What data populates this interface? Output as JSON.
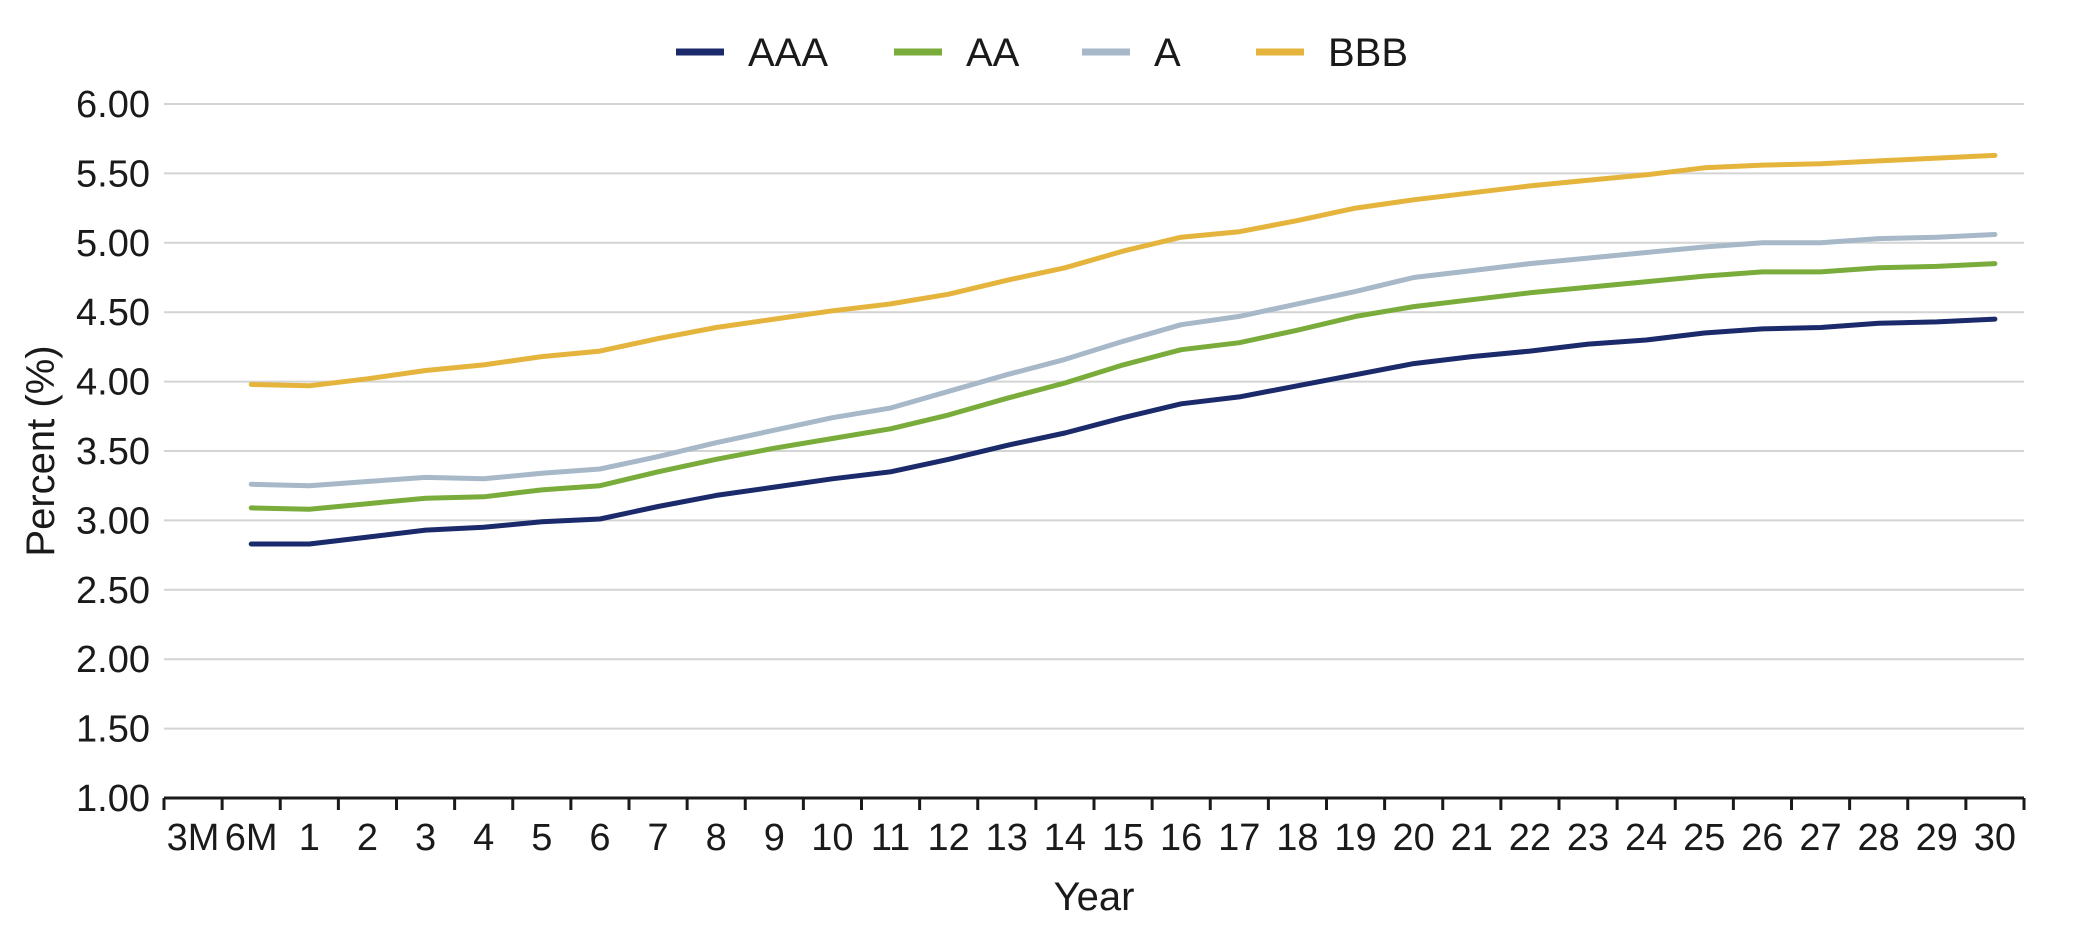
{
  "chart_data": {
    "type": "line",
    "title": "",
    "xlabel": "Year",
    "ylabel": "Percent (%)",
    "categories": [
      "3M",
      "6M",
      "1",
      "2",
      "3",
      "4",
      "5",
      "6",
      "7",
      "8",
      "9",
      "10",
      "11",
      "12",
      "13",
      "14",
      "15",
      "16",
      "17",
      "18",
      "19",
      "20",
      "21",
      "22",
      "23",
      "24",
      "25",
      "26",
      "27",
      "28",
      "29",
      "30"
    ],
    "y_ticks": [
      "1.00",
      "1.50",
      "2.00",
      "2.50",
      "3.00",
      "3.50",
      "4.00",
      "4.50",
      "5.00",
      "5.50",
      "6.00"
    ],
    "ylim": [
      1.0,
      6.0
    ],
    "grid": true,
    "legend_position": "top-center",
    "series": [
      {
        "name": "AAA",
        "color": "#1b2a6b",
        "values": [
          null,
          2.83,
          2.83,
          2.88,
          2.93,
          2.95,
          2.99,
          3.01,
          3.1,
          3.18,
          3.24,
          3.3,
          3.35,
          3.44,
          3.54,
          3.63,
          3.74,
          3.84,
          3.89,
          3.97,
          4.05,
          4.13,
          4.18,
          4.22,
          4.27,
          4.3,
          4.35,
          4.38,
          4.39,
          4.42,
          4.43,
          4.45
        ]
      },
      {
        "name": "AA",
        "color": "#7aac3c",
        "values": [
          null,
          3.09,
          3.08,
          3.12,
          3.16,
          3.17,
          3.22,
          3.25,
          3.35,
          3.44,
          3.52,
          3.59,
          3.66,
          3.76,
          3.88,
          3.99,
          4.12,
          4.23,
          4.28,
          4.37,
          4.47,
          4.54,
          4.59,
          4.64,
          4.68,
          4.72,
          4.76,
          4.79,
          4.79,
          4.82,
          4.83,
          4.85
        ]
      },
      {
        "name": "A",
        "color": "#a7b8c8",
        "values": [
          null,
          3.26,
          3.25,
          3.28,
          3.31,
          3.3,
          3.34,
          3.37,
          3.46,
          3.56,
          3.65,
          3.74,
          3.81,
          3.93,
          4.05,
          4.16,
          4.29,
          4.41,
          4.47,
          4.56,
          4.65,
          4.75,
          4.8,
          4.85,
          4.89,
          4.93,
          4.97,
          5.0,
          5.0,
          5.03,
          5.04,
          5.06
        ]
      },
      {
        "name": "BBB",
        "color": "#e5b43c",
        "values": [
          null,
          3.98,
          3.97,
          4.02,
          4.08,
          4.12,
          4.18,
          4.22,
          4.31,
          4.39,
          4.45,
          4.51,
          4.56,
          4.63,
          4.73,
          4.82,
          4.94,
          5.04,
          5.08,
          5.16,
          5.25,
          5.31,
          5.36,
          5.41,
          5.45,
          5.49,
          5.54,
          5.56,
          5.57,
          5.59,
          5.61,
          5.63
        ]
      }
    ]
  }
}
